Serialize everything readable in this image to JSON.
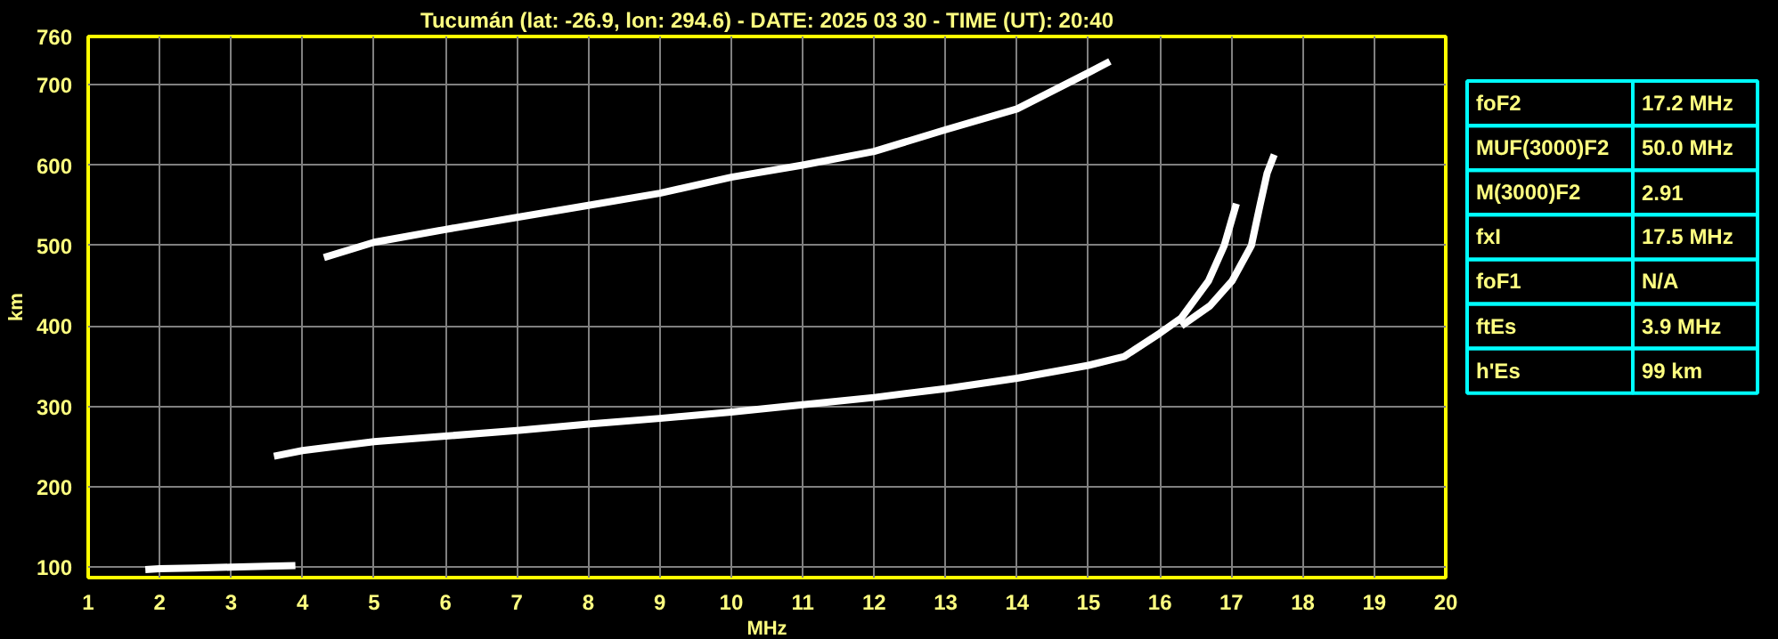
{
  "chart_data": [
    {
      "type": "line",
      "title": "Tucumán (lat: -26.9, lon: 294.6) - DATE: 2025 03 30 - TIME (UT): 20:40",
      "xlabel": "MHz",
      "ylabel": "km",
      "xlim": [
        1,
        20
      ],
      "ylim": [
        87,
        760
      ],
      "xticks": [
        1,
        2,
        3,
        4,
        5,
        6,
        7,
        8,
        9,
        10,
        11,
        12,
        13,
        14,
        15,
        16,
        17,
        18,
        19,
        20
      ],
      "yticks": [
        100,
        200,
        300,
        400,
        500,
        600,
        700,
        760
      ],
      "grid": true,
      "marker": "none",
      "line_style": "solid",
      "series": [
        {
          "color": "#ffffff",
          "x": [
            1.8,
            2.0,
            2.5,
            3.0,
            3.5,
            3.9
          ],
          "values": [
            97,
            98,
            99,
            100,
            101,
            102
          ]
        },
        {
          "color": "#ffffff",
          "x": [
            3.6,
            4.0,
            5.0,
            6.0,
            7.0,
            8.0,
            9.0,
            10.0,
            11.0,
            12.0,
            13.0,
            14.0,
            15.0,
            15.5,
            16.0,
            16.3,
            16.68,
            16.9,
            17.07
          ],
          "values": [
            238,
            245,
            256,
            263,
            270,
            278,
            285,
            293,
            302,
            311,
            322,
            335,
            351,
            362,
            391,
            410,
            456,
            500,
            552
          ]
        },
        {
          "color": "#ffffff",
          "x": [
            16.3,
            16.7,
            17.01,
            17.28,
            17.4,
            17.5,
            17.6
          ],
          "values": [
            400,
            425,
            456,
            500,
            550,
            590,
            613
          ]
        },
        {
          "color": "#ffffff",
          "x": [
            4.3,
            5.0,
            6.0,
            7.0,
            8.0,
            9.0,
            10.0,
            11.0,
            12.0,
            13.0,
            14.0,
            15.0,
            15.3
          ],
          "values": [
            485,
            504,
            520,
            535,
            550,
            565,
            585,
            600,
            617,
            644,
            670,
            715,
            729
          ]
        }
      ]
    },
    {
      "type": "other",
      "annotations": [
        "foF2",
        "17.2 MHz",
        "MUF(3000)F2",
        "50.0 MHz",
        "M(3000)F2",
        "2.91",
        "fxI",
        "17.5 MHz",
        "foF1",
        "N/A",
        "ftEs",
        "3.9 MHz",
        "h'Es",
        "99 km"
      ]
    }
  ]
}
